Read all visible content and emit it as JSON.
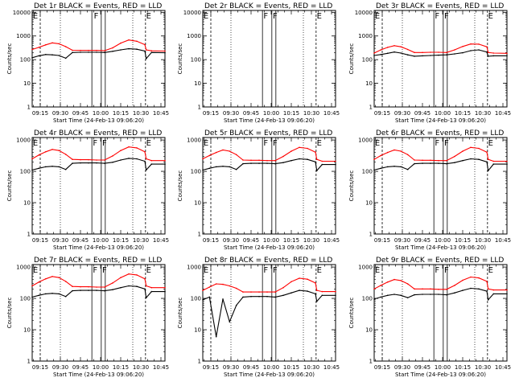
{
  "chart_data": [
    {
      "type": "line",
      "title": "Det 1r BLACK = Events, RED = LLD",
      "xlabel": "Start Time (24-Feb-13 09:06:20)",
      "ylabel": "Counts/sec",
      "yscale": "log",
      "ylim": [
        1,
        12000
      ],
      "y_ticks": [
        "1",
        "10",
        "100",
        "1000",
        "10000"
      ],
      "x_ticks": [
        "09:15",
        "09:30",
        "09:45",
        "10:00",
        "10:15",
        "10:30",
        "10:45"
      ],
      "series": [
        {
          "color": "#000000",
          "y": [
            120,
            145,
            165,
            160,
            150,
            115,
            200,
            205,
            205,
            205,
            200,
            225,
            260,
            290,
            275,
            230,
            110,
            200,
            195
          ]
        },
        {
          "color": "#ff0000",
          "y": [
            270,
            330,
            420,
            510,
            470,
            355,
            250,
            245,
            245,
            245,
            240,
            315,
            500,
            680,
            600,
            430,
            260,
            235,
            230
          ]
        }
      ],
      "flags": [
        "E",
        "F",
        "E"
      ]
    },
    {
      "type": "line",
      "title": "Det 2r BLACK = Events, RED = LLD",
      "xlabel": "Start Time (24-Feb-13 09:06:20)",
      "ylabel": "Counts/sec",
      "yscale": "log",
      "ylim": [
        1,
        12000
      ],
      "y_ticks": [
        "1",
        "10",
        "100",
        "1000",
        "10000"
      ],
      "x_ticks": [
        "09:15",
        "09:30",
        "09:45",
        "10:00",
        "10:15",
        "10:30",
        "10:45"
      ],
      "series": [],
      "flags": [
        "E",
        "F",
        "F",
        "E"
      ]
    },
    {
      "type": "line",
      "title": "Det 3r BLACK = Events, RED = LLD",
      "xlabel": "Start Time (24-Feb-13 09:06:20)",
      "ylabel": "Counts/sec",
      "yscale": "log",
      "ylim": [
        1,
        12000
      ],
      "y_ticks": [
        "1",
        "10",
        "100",
        "1000",
        "10000"
      ],
      "x_ticks": [
        "09:15",
        "09:30",
        "09:45",
        "10:00",
        "10:15",
        "10:30",
        "10:45"
      ],
      "series": [
        {
          "color": "#000000",
          "y": [
            150,
            165,
            185,
            210,
            190,
            160,
            140,
            145,
            150,
            155,
            160,
            175,
            195,
            240,
            260,
            210,
            140,
            145,
            145
          ]
        },
        {
          "color": "#ff0000",
          "y": [
            190,
            260,
            330,
            390,
            350,
            270,
            200,
            200,
            205,
            205,
            200,
            260,
            360,
            460,
            450,
            350,
            200,
            190,
            185
          ]
        }
      ],
      "flags": [
        "E",
        "F",
        "F",
        "E"
      ]
    },
    {
      "type": "line",
      "title": "Det 4r BLACK = Events, RED = LLD",
      "xlabel": "Start Time (24-Feb-13 09:06:20)",
      "ylabel": "Counts/sec",
      "yscale": "log",
      "ylim": [
        1,
        1200
      ],
      "y_ticks": [
        "1",
        "10",
        "100",
        "1000"
      ],
      "x_ticks": [
        "09:15",
        "09:30",
        "09:45",
        "10:00",
        "10:15",
        "10:30",
        "10:45"
      ],
      "series": [
        {
          "color": "#000000",
          "y": [
            110,
            125,
            140,
            145,
            140,
            115,
            180,
            185,
            185,
            185,
            180,
            195,
            230,
            260,
            250,
            210,
            110,
            170,
            170
          ]
        },
        {
          "color": "#ff0000",
          "y": [
            250,
            330,
            420,
            500,
            460,
            350,
            240,
            235,
            235,
            230,
            230,
            310,
            460,
            600,
            560,
            420,
            250,
            220,
            220
          ]
        }
      ],
      "flags": [
        "E",
        "F",
        "F",
        "E"
      ]
    },
    {
      "type": "line",
      "title": "Det 5r BLACK = Events, RED = LLD",
      "xlabel": "Start Time (24-Feb-13 09:06:20)",
      "ylabel": "Counts/sec",
      "yscale": "log",
      "ylim": [
        1,
        1200
      ],
      "y_ticks": [
        "1",
        "10",
        "100",
        "1000"
      ],
      "x_ticks": [
        "09:15",
        "09:30",
        "09:45",
        "10:00",
        "10:15",
        "10:30",
        "10:45"
      ],
      "series": [
        {
          "color": "#000000",
          "y": [
            110,
            125,
            140,
            145,
            140,
            115,
            175,
            180,
            180,
            180,
            175,
            190,
            220,
            250,
            240,
            200,
            105,
            165,
            165
          ]
        },
        {
          "color": "#ff0000",
          "y": [
            250,
            320,
            400,
            480,
            440,
            340,
            230,
            225,
            225,
            220,
            220,
            300,
            440,
            580,
            540,
            410,
            240,
            210,
            210
          ]
        }
      ],
      "flags": [
        "E",
        "F",
        "F",
        "E"
      ]
    },
    {
      "type": "line",
      "title": "Det 6r BLACK = Events, RED = LLD",
      "xlabel": "Start Time (24-Feb-13 09:06:20)",
      "ylabel": "Counts/sec",
      "yscale": "log",
      "ylim": [
        1,
        1200
      ],
      "y_ticks": [
        "1",
        "10",
        "100",
        "1000"
      ],
      "x_ticks": [
        "09:15",
        "09:30",
        "09:45",
        "10:00",
        "10:15",
        "10:30",
        "10:45"
      ],
      "series": [
        {
          "color": "#000000",
          "y": [
            110,
            125,
            140,
            145,
            140,
            115,
            175,
            180,
            180,
            180,
            175,
            190,
            220,
            250,
            240,
            200,
            105,
            170,
            170
          ]
        },
        {
          "color": "#ff0000",
          "y": [
            240,
            320,
            400,
            480,
            440,
            340,
            230,
            225,
            225,
            220,
            220,
            300,
            440,
            580,
            540,
            410,
            240,
            210,
            210
          ]
        }
      ],
      "flags": [
        "E",
        "F",
        "F",
        "E"
      ]
    },
    {
      "type": "line",
      "title": "Det 7r BLACK = Events, RED = LLD",
      "xlabel": "Start Time (24-Feb-13 09:06:20)",
      "ylabel": "Counts/sec",
      "yscale": "log",
      "ylim": [
        1,
        1200
      ],
      "y_ticks": [
        "1",
        "10",
        "100",
        "1000"
      ],
      "x_ticks": [
        "09:15",
        "09:30",
        "09:45",
        "10:00",
        "10:15",
        "10:30",
        "10:45"
      ],
      "series": [
        {
          "color": "#000000",
          "y": [
            110,
            125,
            140,
            145,
            140,
            115,
            175,
            180,
            180,
            180,
            175,
            190,
            220,
            250,
            240,
            200,
            105,
            165,
            165
          ]
        },
        {
          "color": "#ff0000",
          "y": [
            250,
            330,
            420,
            500,
            460,
            350,
            240,
            235,
            235,
            230,
            230,
            310,
            460,
            600,
            560,
            420,
            250,
            220,
            220
          ]
        }
      ],
      "flags": [
        "E",
        "F",
        "F",
        "E"
      ]
    },
    {
      "type": "line",
      "title": "Det 8r BLACK = Events, RED = LLD",
      "xlabel": "Start Time (24-Feb-13 09:06:20)",
      "ylabel": "Counts/sec",
      "yscale": "log",
      "ylim": [
        1,
        1200
      ],
      "y_ticks": [
        "1",
        "10",
        "100",
        "1000"
      ],
      "x_ticks": [
        "09:15",
        "09:30",
        "09:45",
        "10:00",
        "10:15",
        "10:30",
        "10:45"
      ],
      "series": [
        {
          "color": "#000000",
          "y": [
            90,
            110,
            6,
            95,
            18,
            60,
            110,
            115,
            115,
            115,
            110,
            125,
            150,
            180,
            170,
            140,
            80,
            125,
            125
          ]
        },
        {
          "color": "#ff0000",
          "y": [
            180,
            230,
            290,
            280,
            250,
            210,
            160,
            160,
            160,
            160,
            160,
            220,
            340,
            440,
            410,
            310,
            180,
            165,
            165
          ]
        }
      ],
      "flags": [
        "E",
        "F",
        "F",
        "E"
      ]
    },
    {
      "type": "line",
      "title": "Det 9r BLACK = Events, RED = LLD",
      "xlabel": "Start Time (24-Feb-13 09:06:20)",
      "ylabel": "Counts/sec",
      "yscale": "log",
      "ylim": [
        1,
        1200
      ],
      "y_ticks": [
        "1",
        "10",
        "100",
        "1000"
      ],
      "x_ticks": [
        "09:15",
        "09:30",
        "09:45",
        "10:00",
        "10:15",
        "10:30",
        "10:45"
      ],
      "series": [
        {
          "color": "#000000",
          "y": [
            95,
            110,
            125,
            135,
            125,
            105,
            130,
            135,
            135,
            135,
            130,
            150,
            180,
            210,
            200,
            170,
            90,
            140,
            140
          ]
        },
        {
          "color": "#ff0000",
          "y": [
            200,
            260,
            330,
            400,
            370,
            290,
            200,
            200,
            200,
            195,
            195,
            260,
            380,
            480,
            450,
            350,
            200,
            185,
            185
          ]
        }
      ],
      "flags": [
        "E",
        "F",
        "F",
        "E"
      ]
    }
  ]
}
